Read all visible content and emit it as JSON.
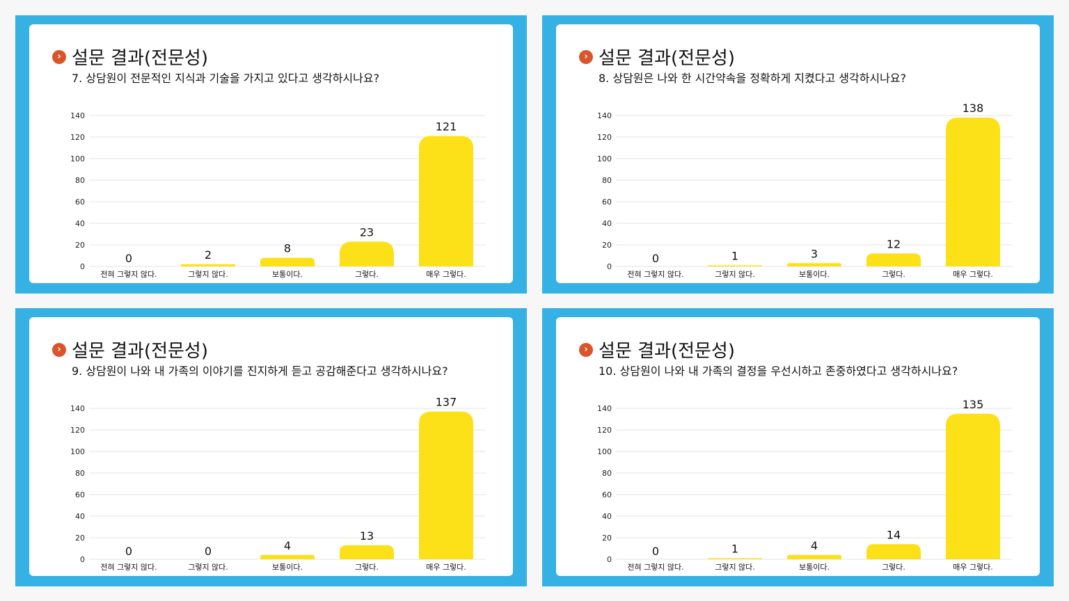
{
  "panels": [
    {
      "title": "설문 결과(전문성)",
      "question": "7. 상담원이 전문적인 지식과 기술을 가지고 있다고 생각하시나요?"
    },
    {
      "title": "설문 결과(전문성)",
      "question": "8. 상담원은 나와 한 시간약속을 정확하게 지켰다고 생각하시나요?"
    },
    {
      "title": "설문 결과(전문성)",
      "question": "9. 상담원이 나와 내 가족의 이야기를 진지하게 듣고 공감해준다고 생각하시나요?"
    },
    {
      "title": "설문 결과(전문성)",
      "question": "10. 상담원이 나와 내 가족의 결정을 우선시하고 존중하였다고 생각하시나요?"
    }
  ],
  "colors": {
    "frame": "#36b1e4",
    "bar": "#fce018",
    "bullet": "#d9552b"
  },
  "bullet_icon": "chevron-right-icon",
  "chart_data": [
    {
      "type": "bar",
      "categories": [
        "전혀 그렇지 않다.",
        "그렇지 않다.",
        "보통이다.",
        "그렇다.",
        "매우 그렇다."
      ],
      "values": [
        0,
        2,
        8,
        23,
        121
      ],
      "yticks": [
        "0",
        "20",
        "40",
        "60",
        "80",
        "100",
        "120",
        "140"
      ],
      "ylim": [
        0,
        140
      ],
      "grid": true
    },
    {
      "type": "bar",
      "categories": [
        "전혀 그렇지 않다.",
        "그렇지 않다.",
        "보통이다.",
        "그렇다.",
        "매우 그렇다."
      ],
      "values": [
        0,
        1,
        3,
        12,
        138
      ],
      "yticks": [
        "0",
        "20",
        "40",
        "60",
        "80",
        "100",
        "120",
        "140"
      ],
      "ylim": [
        0,
        140
      ],
      "grid": true
    },
    {
      "type": "bar",
      "categories": [
        "전혀 그렇지 않다.",
        "그렇지 않다.",
        "보통이다.",
        "그렇다.",
        "매우 그렇다."
      ],
      "values": [
        0,
        0,
        4,
        13,
        137
      ],
      "yticks": [
        "0",
        "20",
        "40",
        "60",
        "80",
        "100",
        "120",
        "140"
      ],
      "ylim": [
        0,
        140
      ],
      "grid": true
    },
    {
      "type": "bar",
      "categories": [
        "전혀 그렇지 않다.",
        "그렇지 않다.",
        "보통이다.",
        "그렇다.",
        "매우 그렇다."
      ],
      "values": [
        0,
        1,
        4,
        14,
        135
      ],
      "yticks": [
        "0",
        "20",
        "40",
        "60",
        "80",
        "100",
        "120",
        "140"
      ],
      "ylim": [
        0,
        140
      ],
      "grid": true
    }
  ]
}
